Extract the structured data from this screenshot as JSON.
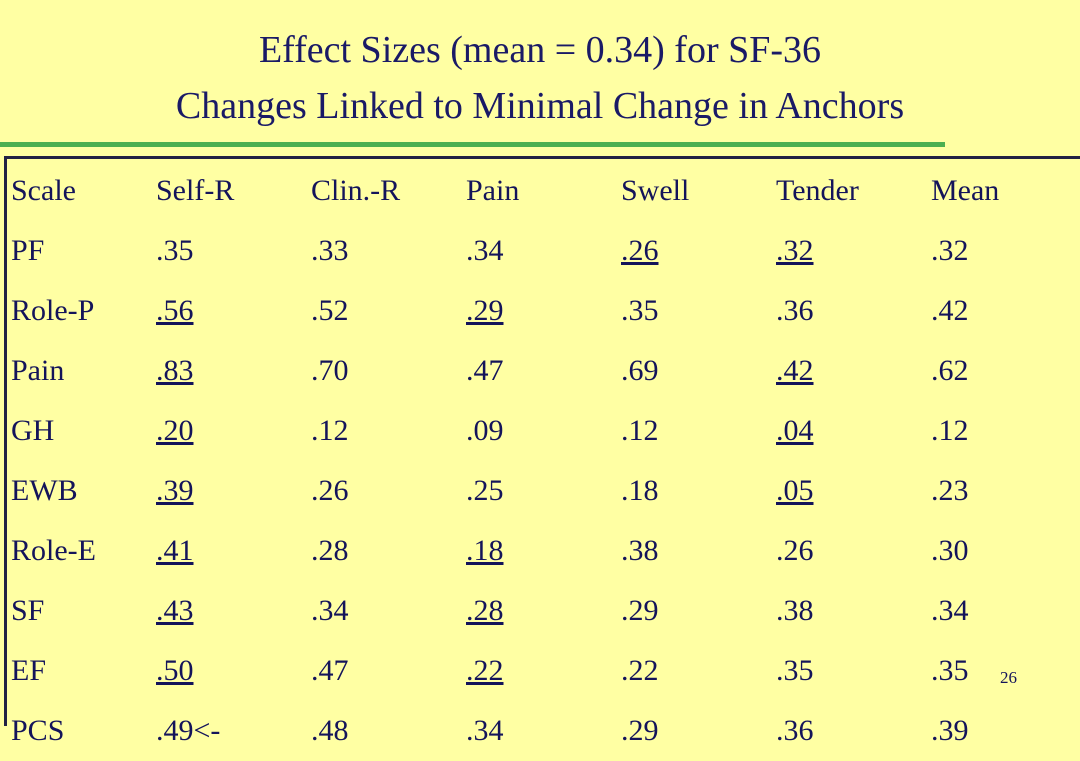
{
  "title": {
    "line1": "Effect Sizes (mean = 0.34) for SF-36",
    "line2": "Changes Linked to Minimal Change in Anchors"
  },
  "table": {
    "header": [
      "Scale",
      "Self-R",
      "Clin.-R",
      "Pain",
      "Swell",
      "Tender",
      "Mean"
    ],
    "rows": [
      [
        "PF",
        ".35",
        ".33",
        ".34",
        {
          "text": ".26",
          "underline": true
        },
        {
          "text": ".32",
          "underline": true
        },
        ".32"
      ],
      [
        "Role-P",
        {
          "text": ".56",
          "underline": true
        },
        ".52",
        {
          "text": ".29",
          "underline": true
        },
        ".35",
        ".36",
        ".42"
      ],
      [
        "Pain",
        {
          "text": ".83",
          "underline": true
        },
        ".70",
        ".47",
        ".69",
        {
          "text": ".42",
          "underline": true
        },
        ".62"
      ],
      [
        "GH",
        {
          "text": ".20",
          "underline": true
        },
        ".12",
        ".09",
        ".12",
        {
          "text": ".04",
          "underline": true
        },
        ".12"
      ],
      [
        "EWB",
        {
          "text": ".39",
          "underline": true
        },
        ".26",
        ".25",
        ".18",
        {
          "text": ".05",
          "underline": true
        },
        ".23"
      ],
      [
        "Role-E",
        {
          "text": ".41",
          "underline": true
        },
        ".28",
        {
          "text": ".18",
          "underline": true
        },
        ".38",
        ".26",
        ".30"
      ],
      [
        "SF",
        {
          "text": ".43",
          "underline": true
        },
        ".34",
        {
          "text": ".28",
          "underline": true
        },
        ".29",
        ".38",
        ".34"
      ],
      [
        "EF",
        {
          "text": ".50",
          "underline": true
        },
        ".47",
        {
          "text": ".22",
          "underline": true
        },
        ".22",
        ".35",
        ".35"
      ],
      [
        "PCS",
        ".49<-",
        ".48",
        ".34",
        ".29",
        ".36",
        ".39"
      ]
    ]
  },
  "page_number": "26"
}
